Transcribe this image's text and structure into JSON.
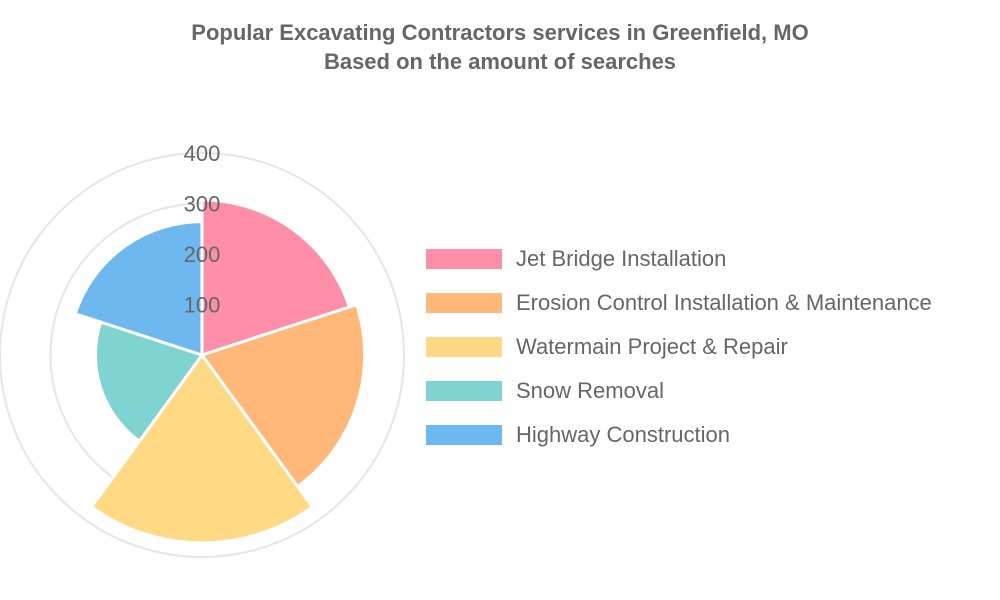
{
  "title": "Popular Excavating Contractors services in Greenfield, MO",
  "subtitle": "Based on the amount of searches",
  "chart_data": {
    "type": "polarArea",
    "title": "Popular Excavating Contractors services in Greenfield, MO",
    "subtitle": "Based on the amount of searches",
    "categories": [
      "Jet Bridge Installation",
      "Erosion Control Installation & Maintenance",
      "Watermain Project & Repair",
      "Snow Removal",
      "Highway Construction"
    ],
    "values": [
      307,
      322,
      372,
      211,
      264
    ],
    "colors": [
      "#ff8fa8",
      "#ffb877",
      "#ffd984",
      "#7fd3d1",
      "#6db8ef"
    ],
    "r_ticks": [
      100,
      200,
      300,
      400
    ],
    "r_max": 400,
    "legend_position": "right",
    "grid": true
  }
}
